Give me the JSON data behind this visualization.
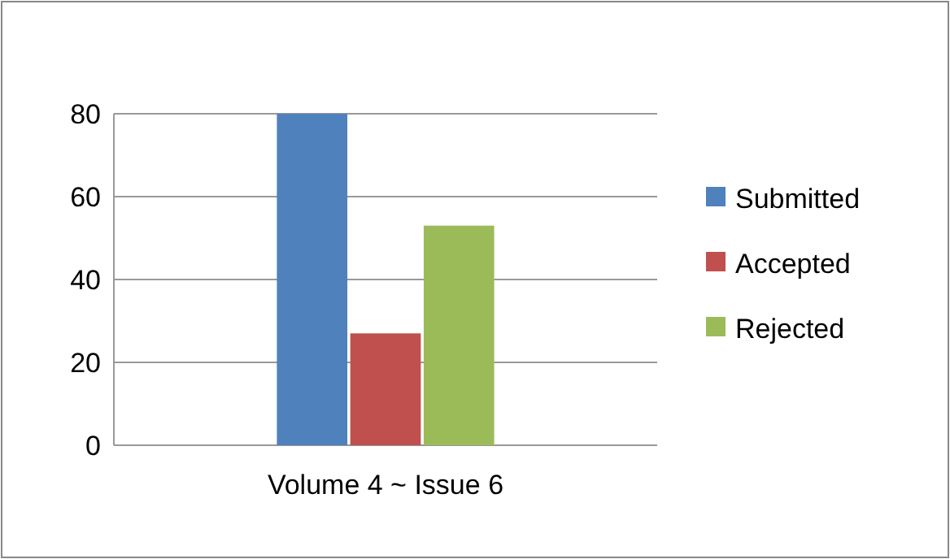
{
  "chart_data": {
    "type": "bar",
    "categories": [
      "Volume 4 ~ Issue 6"
    ],
    "series": [
      {
        "name": "Submitted",
        "color": "#4f81bd",
        "values": [
          80
        ]
      },
      {
        "name": "Accepted",
        "color": "#c0504d",
        "values": [
          27
        ]
      },
      {
        "name": "Rejected",
        "color": "#9bbb59",
        "values": [
          53
        ]
      }
    ],
    "ylim": [
      0,
      80
    ],
    "yticks": [
      0,
      20,
      40,
      60,
      80
    ],
    "grid": "y",
    "legend": "right"
  }
}
